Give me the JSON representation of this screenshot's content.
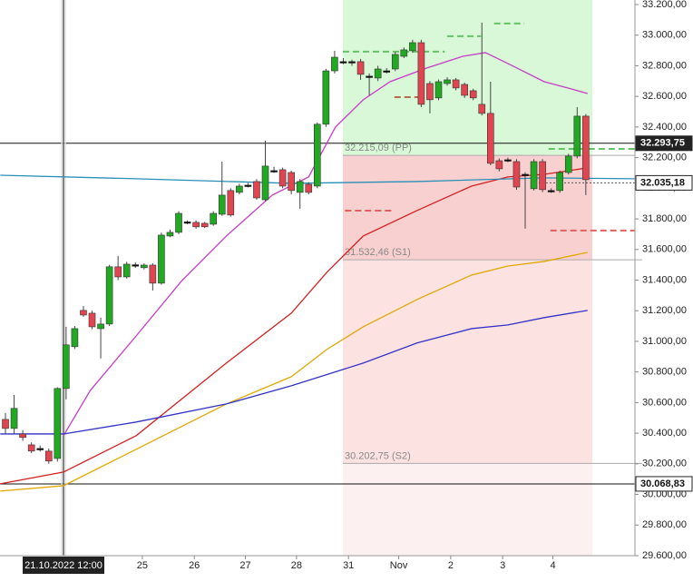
{
  "chart_data": {
    "type": "candlestick",
    "x": [
      0,
      1,
      2,
      3,
      4,
      5,
      6,
      7,
      8,
      9,
      10,
      11,
      12,
      13,
      14,
      15,
      16,
      17,
      18,
      19,
      20,
      21,
      22,
      23,
      24,
      25,
      26,
      27,
      28,
      29,
      30,
      31,
      32,
      33,
      34,
      35,
      36,
      37,
      38,
      39,
      40,
      41,
      42,
      43,
      44,
      45,
      46,
      47,
      48,
      49,
      50,
      51,
      52,
      53,
      54,
      55,
      56,
      57,
      58,
      59,
      60,
      61,
      62,
      63,
      64,
      65,
      66,
      67
    ],
    "open": [
      30490,
      30431,
      30395,
      30324,
      30300,
      30283,
      30235,
      30692,
      30965,
      31202,
      31184,
      31083,
      31113,
      31487,
      31421,
      31500,
      31481,
      31498,
      31380,
      31688,
      31712,
      31780,
      31777,
      31771,
      31765,
      31830,
      31985,
      31973,
      32020,
      32044,
      31925,
      32115,
      32121,
      32103,
      31973,
      32026,
      32014,
      32418,
      32767,
      32827,
      32827,
      32827,
      32732,
      32720,
      32767,
      32779,
      32862,
      32898,
      32951,
      32684,
      32590,
      32684,
      32708,
      32678,
      32637,
      32548,
      32489,
      32180,
      32186,
      32174,
      32091,
      31997,
      32174,
      31985,
      31985,
      32103,
      32210,
      32471
    ],
    "high": [
      30532,
      30650,
      30420,
      30340,
      30320,
      30300,
      30700,
      31095,
      31100,
      31230,
      31200,
      31155,
      31500,
      31558,
      31520,
      31515,
      31510,
      31510,
      31710,
      31730,
      31850,
      31790,
      31790,
      31780,
      31850,
      32174,
      32000,
      32030,
      32035,
      32060,
      32311,
      32140,
      32135,
      32115,
      32060,
      32040,
      32430,
      32780,
      32898,
      32850,
      32840,
      32845,
      32750,
      32800,
      32785,
      32890,
      32920,
      32970,
      32970,
      32700,
      32710,
      32725,
      32720,
      32690,
      32650,
      33082,
      32696,
      32195,
      32200,
      32190,
      32105,
      32190,
      32190,
      32000,
      32115,
      32225,
      32530,
      32485
    ],
    "low": [
      30395,
      30395,
      30350,
      30270,
      30280,
      30200,
      30215,
      30621,
      30950,
      31160,
      31080,
      30888,
      31100,
      31400,
      31410,
      31480,
      31470,
      31332,
      31370,
      31680,
      31700,
      31765,
      31735,
      31740,
      31755,
      31820,
      31815,
      31960,
      32005,
      31925,
      31915,
      32100,
      32000,
      31960,
      31866,
      31960,
      32000,
      32400,
      32750,
      32810,
      32800,
      32708,
      32607,
      32700,
      32750,
      32765,
      32850,
      32885,
      32530,
      32489,
      32575,
      32670,
      32640,
      32590,
      32575,
      32475,
      32150,
      32110,
      32170,
      31990,
      31736,
      31985,
      31975,
      31970,
      31970,
      32090,
      32195,
      31955
    ],
    "close": [
      30431,
      30562,
      30372,
      30283,
      30300,
      30218,
      30692,
      30977,
      31083,
      31172,
      31095,
      31113,
      31487,
      31421,
      31504,
      31500,
      31498,
      31380,
      31694,
      31712,
      31836,
      31780,
      31748,
      31748,
      31836,
      31955,
      31825,
      32014,
      32020,
      31937,
      32145,
      32115,
      32014,
      31985,
      32044,
      31973,
      32418,
      32767,
      32856,
      32827,
      32827,
      32744,
      32732,
      32779,
      32767,
      32874,
      32904,
      32951,
      32548,
      32578,
      32696,
      32708,
      32655,
      32607,
      32590,
      32489,
      32163,
      32127,
      32186,
      32008,
      32091,
      32174,
      31991,
      31985,
      32103,
      32210,
      32471,
      32056
    ],
    "up_color": "#22a822",
    "down_color": "#e04550",
    "flat_color": "#111111",
    "lines": [
      {
        "color": "#c83cc8",
        "x": [
          6.7,
          9.8,
          15.1,
          20.3,
          25.5,
          30.8,
          35,
          38.1,
          41.3,
          44.4,
          48.6,
          52.8,
          55.4,
          58,
          62.2,
          65.3,
          67.2
        ],
        "values": [
          30384,
          30680,
          31036,
          31392,
          31688,
          31955,
          32074,
          32400,
          32578,
          32696,
          32785,
          32862,
          32886,
          32815,
          32696,
          32649,
          32619
        ]
      },
      {
        "color": "#d42020",
        "x": [
          -0.6,
          6.7,
          15.1,
          25.5,
          33,
          37.1,
          41.3,
          47.5,
          53.8,
          58,
          62.2,
          67.2
        ],
        "values": [
          30069,
          30146,
          30384,
          30858,
          31184,
          31451,
          31688,
          31854,
          32014,
          32074,
          32091,
          32133
        ]
      },
      {
        "color": "#e0a800",
        "x": [
          -0.6,
          6.7,
          15.1,
          25.5,
          33,
          37.1,
          41.3,
          47.5,
          53.8,
          58,
          62.2,
          67.2
        ],
        "values": [
          30022,
          30057,
          30295,
          30591,
          30769,
          30947,
          31095,
          31273,
          31433,
          31492,
          31522,
          31581
        ]
      },
      {
        "color": "#3232c8",
        "x": [
          -0.6,
          6.7,
          15.1,
          25.5,
          33,
          41.3,
          47.5,
          53.8,
          58,
          62.2,
          67.2
        ],
        "values": [
          30395,
          30395,
          30473,
          30591,
          30710,
          30858,
          30989,
          31083,
          31107,
          31155,
          31202
        ]
      },
      {
        "color": "#2a8fb8",
        "x": [
          -0.6,
          15.1,
          33,
          47.5,
          62.2,
          72.7
        ],
        "values": [
          32085,
          32062,
          32032,
          32044,
          32068,
          32062
        ]
      }
    ],
    "pivot_x_range": [
      38.95,
      67.75
    ],
    "pivots": [
      {
        "value": 32215.09,
        "label": "32.215,09 (PP)"
      },
      {
        "value": 31532.46,
        "label": "31.532,46 (S1)"
      },
      {
        "value": 30202.75,
        "label": "30.202,75 (S2)"
      }
    ],
    "dashed_levels": [
      {
        "x": [
          38.95,
          50.7
        ],
        "value": 32892,
        "color": "#66c266"
      },
      {
        "x": [
          51,
          54.9
        ],
        "value": 32993,
        "color": "#66c266"
      },
      {
        "x": [
          56.4,
          59.9
        ],
        "value": 33076,
        "color": "#66c266"
      },
      {
        "x": [
          62.7,
          72.7
        ],
        "value": 32257,
        "color": "#66c266"
      },
      {
        "x": [
          39.2,
          44.9
        ],
        "value": 31854,
        "color": "#e06060"
      },
      {
        "x": [
          62.9,
          72.7
        ],
        "value": 31724,
        "color": "#e06060"
      },
      {
        "x": [
          44.9,
          48
        ],
        "value": 32595,
        "color": "#b07050"
      }
    ],
    "hlines": [
      {
        "value": 32293.75,
        "label": "32.293,75",
        "dark": true,
        "line": true
      },
      {
        "value": 32035.18,
        "label": "32.035,18",
        "dark": false,
        "line": false
      },
      {
        "value": 30068.83,
        "label": "30.068,83",
        "dark": false,
        "line": true
      }
    ],
    "crosshair": {
      "x": 6.7,
      "label": "21.10.2022 12:00"
    },
    "xlim": [
      -0.63,
      72.67
    ],
    "xticks": [
      {
        "value": 15.8,
        "label": "25"
      },
      {
        "value": 21.8,
        "label": "26"
      },
      {
        "value": 27.7,
        "label": "27"
      },
      {
        "value": 33.6,
        "label": "28"
      },
      {
        "value": 39.6,
        "label": "31"
      },
      {
        "value": 45.4,
        "label": "Nov"
      },
      {
        "value": 51.4,
        "label": "2"
      },
      {
        "value": 57.4,
        "label": "3"
      },
      {
        "value": 63.2,
        "label": "4"
      }
    ],
    "ylim": [
      29600,
      33200
    ],
    "yticks": [
      {
        "value": 29600,
        "label": "29.600,00"
      },
      {
        "value": 29800,
        "label": "29.800,00"
      },
      {
        "value": 30000,
        "label": "30.000,00"
      },
      {
        "value": 30200,
        "label": "30.200,00"
      },
      {
        "value": 30400,
        "label": "30.400,00"
      },
      {
        "value": 30600,
        "label": "30.600,00"
      },
      {
        "value": 30800,
        "label": "30.800,00"
      },
      {
        "value": 31000,
        "label": "31.000,00"
      },
      {
        "value": 31200,
        "label": "31.200,00"
      },
      {
        "value": 31400,
        "label": "31.400,00"
      },
      {
        "value": 31600,
        "label": "31.600,00"
      },
      {
        "value": 31800,
        "label": "31.800,00"
      },
      {
        "value": 32000,
        "label": "32.000,00"
      },
      {
        "value": 32200,
        "label": "32.200,00"
      },
      {
        "value": 32400,
        "label": "32.400,00"
      },
      {
        "value": 32600,
        "label": "32.600,00"
      },
      {
        "value": 32800,
        "label": "32.800,00"
      },
      {
        "value": 33000,
        "label": "33.000,00"
      },
      {
        "value": 33200,
        "label": "33.200,00"
      }
    ]
  }
}
